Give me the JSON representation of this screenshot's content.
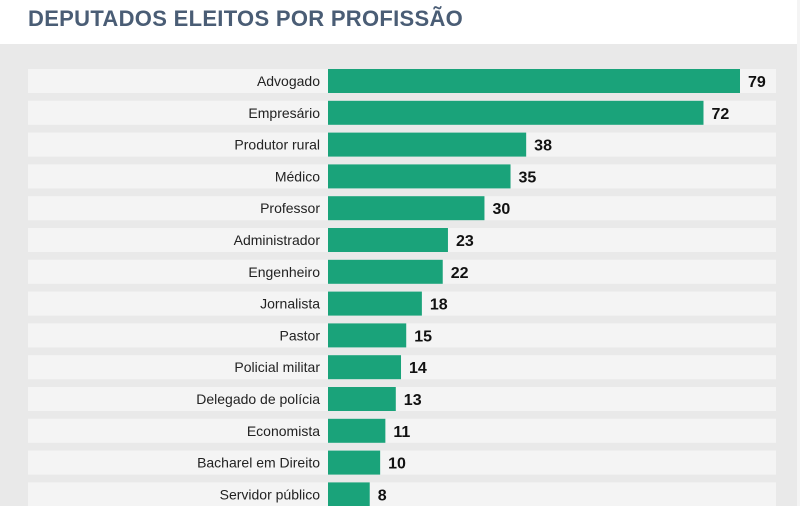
{
  "title": "DEPUTADOS ELEITOS POR PROFISSÃO",
  "colors": {
    "bar": "#1aa37a",
    "row_bg": "#f4f4f4",
    "panel_bg": "#e9e9e9",
    "title": "#4a5d75"
  },
  "chart_data": {
    "type": "bar",
    "orientation": "horizontal",
    "title": "DEPUTADOS ELEITOS POR PROFISSÃO",
    "xlabel": "",
    "ylabel": "",
    "xlim": [
      0,
      79
    ],
    "grid": false,
    "legend": "none",
    "categories": [
      "Advogado",
      "Empresário",
      "Produtor rural",
      "Médico",
      "Professor",
      "Administrador",
      "Engenheiro",
      "Jornalista",
      "Pastor",
      "Policial militar",
      "Delegado de polícia",
      "Economista",
      "Bacharel em Direito",
      "Servidor público"
    ],
    "values": [
      79,
      72,
      38,
      35,
      30,
      23,
      22,
      18,
      15,
      14,
      13,
      11,
      10,
      8
    ]
  }
}
